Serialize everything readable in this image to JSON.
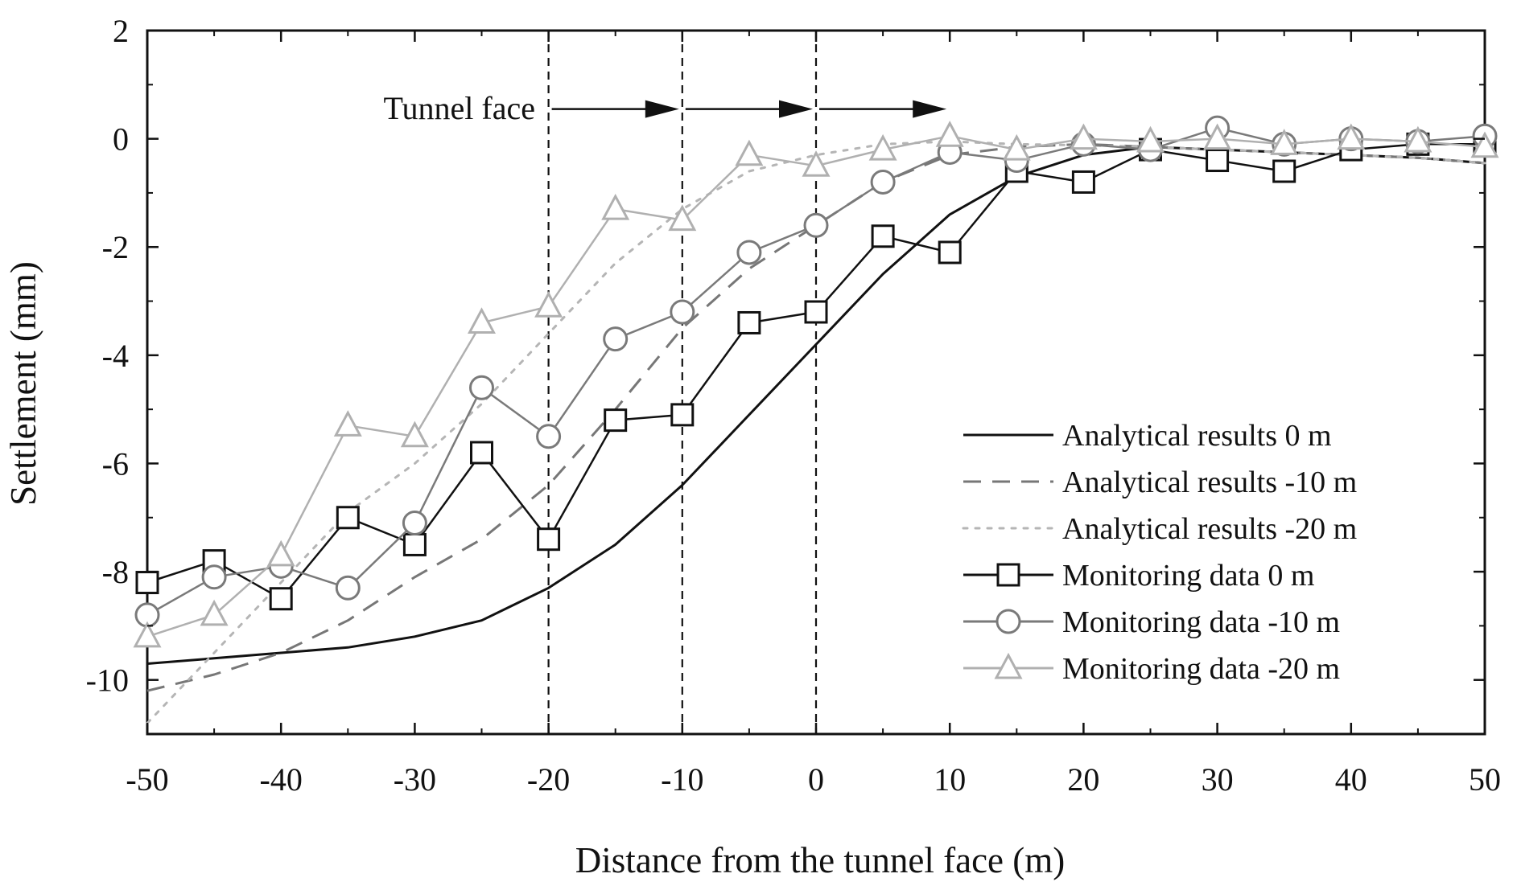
{
  "chart_data": {
    "type": "line",
    "title": "",
    "xlabel": "Distance from the tunnel face (m)",
    "ylabel": "Settlement (mm)",
    "xlim": [
      -50,
      50
    ],
    "ylim": [
      -11,
      2
    ],
    "xticks": [
      -50,
      -40,
      -30,
      -20,
      -10,
      0,
      10,
      20,
      30,
      40,
      50
    ],
    "yticks": [
      2,
      0,
      -2,
      -4,
      -6,
      -8,
      -10
    ],
    "xtick_labels": [
      "-50",
      "-40",
      "-30",
      "-20",
      "-10",
      "0",
      "10",
      "20",
      "30",
      "40",
      "50"
    ],
    "ytick_labels": [
      "2",
      "0",
      "-2",
      "-4",
      "-6",
      "-8",
      "-10"
    ],
    "grid": false,
    "legend_position": "bottom-right",
    "series": [
      {
        "name": "Analytical results 0 m",
        "style": "solid",
        "marker": "none",
        "color": "#111111",
        "x": [
          -50,
          -45,
          -40,
          -35,
          -30,
          -25,
          -20,
          -15,
          -10,
          -5,
          0,
          5,
          10,
          15,
          20,
          25,
          30,
          35,
          40,
          45,
          50
        ],
        "values": [
          -9.7,
          -9.6,
          -9.5,
          -9.4,
          -9.2,
          -8.9,
          -8.3,
          -7.5,
          -6.4,
          -5.1,
          -3.8,
          -2.5,
          -1.4,
          -0.7,
          -0.3,
          -0.15,
          -0.2,
          -0.25,
          -0.3,
          -0.35,
          -0.45
        ]
      },
      {
        "name": "Analytical results -10 m",
        "style": "dashed",
        "marker": "none",
        "color": "#777777",
        "x": [
          -50,
          -45,
          -40,
          -35,
          -30,
          -25,
          -20,
          -15,
          -10,
          -5,
          0,
          5,
          10,
          15,
          20,
          25,
          30,
          35,
          40,
          45,
          50
        ],
        "values": [
          -10.2,
          -9.9,
          -9.5,
          -8.9,
          -8.1,
          -7.4,
          -6.4,
          -5.0,
          -3.5,
          -2.4,
          -1.6,
          -0.8,
          -0.3,
          -0.15,
          -0.1,
          -0.15,
          -0.2,
          -0.25,
          -0.3,
          -0.35,
          -0.45
        ]
      },
      {
        "name": "Analytical results -20 m",
        "style": "dotted",
        "marker": "none",
        "color": "#b5b5b5",
        "x": [
          -50,
          -45,
          -40,
          -35,
          -30,
          -25,
          -20,
          -15,
          -10,
          -5,
          0,
          5,
          10,
          15,
          20,
          25,
          30,
          35,
          40,
          45,
          50
        ],
        "values": [
          -10.8,
          -9.5,
          -8.2,
          -6.9,
          -6.0,
          -4.9,
          -3.6,
          -2.3,
          -1.3,
          -0.6,
          -0.3,
          -0.1,
          -0.05,
          -0.1,
          -0.12,
          -0.15,
          -0.2,
          -0.25,
          -0.3,
          -0.35,
          -0.45
        ]
      },
      {
        "name": "Monitoring data 0 m",
        "style": "solid",
        "marker": "square",
        "color": "#111111",
        "x": [
          -50,
          -45,
          -40,
          -35,
          -30,
          -25,
          -20,
          -15,
          -10,
          -5,
          0,
          5,
          10,
          15,
          20,
          25,
          30,
          35,
          40,
          45,
          50
        ],
        "values": [
          -8.2,
          -7.8,
          -8.5,
          -7.0,
          -7.5,
          -5.8,
          -7.4,
          -5.2,
          -5.1,
          -3.4,
          -3.2,
          -1.8,
          -2.1,
          -0.6,
          -0.8,
          -0.2,
          -0.4,
          -0.6,
          -0.2,
          -0.1,
          -0.1
        ]
      },
      {
        "name": "Monitoring data -10 m",
        "style": "solid",
        "marker": "circle",
        "color": "#7a7a7a",
        "x": [
          -50,
          -45,
          -40,
          -35,
          -30,
          -25,
          -20,
          -15,
          -10,
          -5,
          0,
          5,
          10,
          15,
          20,
          25,
          30,
          35,
          40,
          45,
          50
        ],
        "values": [
          -8.8,
          -8.1,
          -7.9,
          -8.3,
          -7.1,
          -4.6,
          -5.5,
          -3.7,
          -3.2,
          -2.1,
          -1.6,
          -0.8,
          -0.25,
          -0.4,
          -0.1,
          -0.2,
          0.2,
          -0.1,
          0.0,
          -0.05,
          0.05
        ]
      },
      {
        "name": "Monitoring data -20 m",
        "style": "solid",
        "marker": "triangle",
        "color": "#b0b0b0",
        "x": [
          -50,
          -45,
          -40,
          -35,
          -30,
          -25,
          -20,
          -15,
          -10,
          -5,
          0,
          5,
          10,
          15,
          20,
          25,
          30,
          35,
          40,
          45,
          50
        ],
        "values": [
          -9.2,
          -8.8,
          -7.7,
          -5.3,
          -5.5,
          -3.4,
          -3.1,
          -1.3,
          -1.5,
          -0.3,
          -0.5,
          -0.2,
          0.05,
          -0.2,
          0.0,
          -0.05,
          0.0,
          -0.1,
          0.0,
          -0.05,
          -0.15
        ]
      }
    ],
    "annotations": {
      "label": "Tunnel face",
      "vlines_at_x": [
        -20,
        -10,
        0
      ],
      "arrow_segments": [
        [
          -20,
          -10
        ],
        [
          -10,
          0
        ],
        [
          0,
          10
        ]
      ],
      "arrow_y": 0.55
    }
  }
}
